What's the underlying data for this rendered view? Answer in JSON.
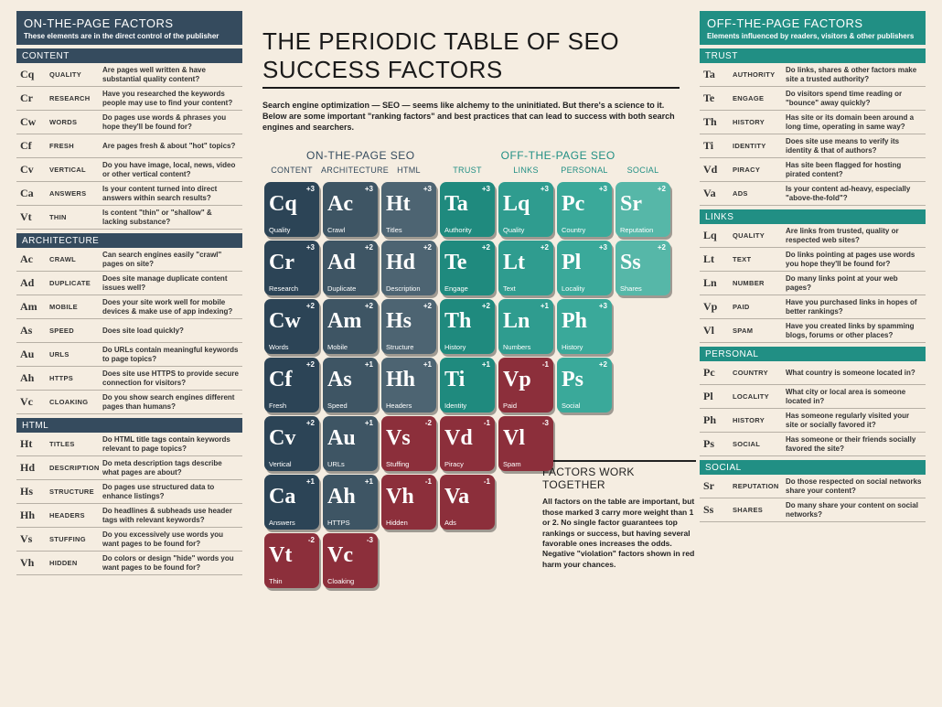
{
  "colors": {
    "bg": "#f5ede1",
    "left_theme": "#354b5e",
    "right_theme": "#218f84",
    "rule": "#b7b0a5",
    "text": "#222222"
  },
  "title": "THE PERIODIC TABLE OF SEO SUCCESS FACTORS",
  "intro": "Search engine optimization — SEO — seems like alchemy to the uninitiated. But there's a science to it. Below are some important \"ranking factors\" and best practices that can lead to success with both search engines and searchers.",
  "group_labels": {
    "on": "ON-THE-PAGE SEO",
    "off": "OFF-THE-PAGE SEO"
  },
  "columns": [
    "CONTENT",
    "ARCHITECTURE",
    "HTML",
    "TRUST",
    "LINKS",
    "PERSONAL",
    "SOCIAL"
  ],
  "column_colors": [
    "#2c4456",
    "#3e5564",
    "#4d6472",
    "#1f8a7e",
    "#2f9c8f",
    "#3aa99a",
    "#56b7a8"
  ],
  "violation_color": "#8c2f3b",
  "tiles": [
    {
      "col": 1,
      "row": 1,
      "sym": "Cq",
      "lbl": "Quality",
      "score": "+3"
    },
    {
      "col": 2,
      "row": 1,
      "sym": "Ac",
      "lbl": "Crawl",
      "score": "+3"
    },
    {
      "col": 3,
      "row": 1,
      "sym": "Ht",
      "lbl": "Titles",
      "score": "+3"
    },
    {
      "col": 4,
      "row": 1,
      "sym": "Ta",
      "lbl": "Authority",
      "score": "+3"
    },
    {
      "col": 5,
      "row": 1,
      "sym": "Lq",
      "lbl": "Quality",
      "score": "+3"
    },
    {
      "col": 6,
      "row": 1,
      "sym": "Pc",
      "lbl": "Country",
      "score": "+3"
    },
    {
      "col": 7,
      "row": 1,
      "sym": "Sr",
      "lbl": "Reputation",
      "score": "+2"
    },
    {
      "col": 1,
      "row": 2,
      "sym": "Cr",
      "lbl": "Research",
      "score": "+3"
    },
    {
      "col": 2,
      "row": 2,
      "sym": "Ad",
      "lbl": "Duplicate",
      "score": "+2"
    },
    {
      "col": 3,
      "row": 2,
      "sym": "Hd",
      "lbl": "Description",
      "score": "+2"
    },
    {
      "col": 4,
      "row": 2,
      "sym": "Te",
      "lbl": "Engage",
      "score": "+2"
    },
    {
      "col": 5,
      "row": 2,
      "sym": "Lt",
      "lbl": "Text",
      "score": "+2"
    },
    {
      "col": 6,
      "row": 2,
      "sym": "Pl",
      "lbl": "Locality",
      "score": "+3"
    },
    {
      "col": 7,
      "row": 2,
      "sym": "Ss",
      "lbl": "Shares",
      "score": "+2"
    },
    {
      "col": 1,
      "row": 3,
      "sym": "Cw",
      "lbl": "Words",
      "score": "+2"
    },
    {
      "col": 2,
      "row": 3,
      "sym": "Am",
      "lbl": "Mobile",
      "score": "+2"
    },
    {
      "col": 3,
      "row": 3,
      "sym": "Hs",
      "lbl": "Structure",
      "score": "+2"
    },
    {
      "col": 4,
      "row": 3,
      "sym": "Th",
      "lbl": "History",
      "score": "+2"
    },
    {
      "col": 5,
      "row": 3,
      "sym": "Ln",
      "lbl": "Numbers",
      "score": "+1"
    },
    {
      "col": 6,
      "row": 3,
      "sym": "Ph",
      "lbl": "History",
      "score": "+3"
    },
    {
      "col": 1,
      "row": 4,
      "sym": "Cf",
      "lbl": "Fresh",
      "score": "+2"
    },
    {
      "col": 2,
      "row": 4,
      "sym": "As",
      "lbl": "Speed",
      "score": "+1"
    },
    {
      "col": 3,
      "row": 4,
      "sym": "Hh",
      "lbl": "Headers",
      "score": "+1"
    },
    {
      "col": 4,
      "row": 4,
      "sym": "Ti",
      "lbl": "Identity",
      "score": "+1"
    },
    {
      "col": 5,
      "row": 4,
      "sym": "Vp",
      "lbl": "Paid",
      "score": "-1",
      "violation": true
    },
    {
      "col": 6,
      "row": 4,
      "sym": "Ps",
      "lbl": "Social",
      "score": "+2"
    },
    {
      "col": 1,
      "row": 5,
      "sym": "Cv",
      "lbl": "Vertical",
      "score": "+2"
    },
    {
      "col": 2,
      "row": 5,
      "sym": "Au",
      "lbl": "URLs",
      "score": "+1"
    },
    {
      "col": 3,
      "row": 5,
      "sym": "Vs",
      "lbl": "Stuffing",
      "score": "-2",
      "violation": true
    },
    {
      "col": 4,
      "row": 5,
      "sym": "Vd",
      "lbl": "Piracy",
      "score": "-1",
      "violation": true
    },
    {
      "col": 5,
      "row": 5,
      "sym": "Vl",
      "lbl": "Spam",
      "score": "-3",
      "violation": true
    },
    {
      "col": 1,
      "row": 6,
      "sym": "Ca",
      "lbl": "Answers",
      "score": "+1"
    },
    {
      "col": 2,
      "row": 6,
      "sym": "Ah",
      "lbl": "HTTPS",
      "score": "+1"
    },
    {
      "col": 3,
      "row": 6,
      "sym": "Vh",
      "lbl": "Hidden",
      "score": "-1",
      "violation": true
    },
    {
      "col": 4,
      "row": 6,
      "sym": "Va",
      "lbl": "Ads",
      "score": "-1",
      "violation": true
    },
    {
      "col": 1,
      "row": 7,
      "sym": "Vt",
      "lbl": "Thin",
      "score": "-2",
      "violation": true
    },
    {
      "col": 2,
      "row": 7,
      "sym": "Vc",
      "lbl": "Cloaking",
      "score": "-3",
      "violation": true
    }
  ],
  "note": {
    "heading": "FACTORS WORK TOGETHER",
    "body": "All factors on the table are important, but those marked 3 carry more weight than 1 or 2. No single factor guarantees top rankings or success, but having several favorable ones increases the odds. Negative \"violation\" factors shown in red harm your chances."
  },
  "left": {
    "title": "ON-THE-PAGE FACTORS",
    "sub": "These elements are in the direct control of the publisher",
    "sections": [
      {
        "name": "CONTENT",
        "rows": [
          {
            "sym": "Cq",
            "name": "QUALITY",
            "desc": "Are pages well written & have substantial quality content?"
          },
          {
            "sym": "Cr",
            "name": "RESEARCH",
            "desc": "Have you researched the keywords people may use to find your content?"
          },
          {
            "sym": "Cw",
            "name": "WORDS",
            "desc": "Do pages use words & phrases you hope they'll be found for?"
          },
          {
            "sym": "Cf",
            "name": "FRESH",
            "desc": "Are pages fresh & about \"hot\" topics?"
          },
          {
            "sym": "Cv",
            "name": "VERTICAL",
            "desc": "Do you have image, local, news, video or other vertical content?"
          },
          {
            "sym": "Ca",
            "name": "ANSWERS",
            "desc": "Is your content turned into direct answers within search results?"
          },
          {
            "sym": "Vt",
            "name": "THIN",
            "desc": "Is content \"thin\" or \"shallow\" & lacking substance?"
          }
        ]
      },
      {
        "name": "ARCHITECTURE",
        "rows": [
          {
            "sym": "Ac",
            "name": "CRAWL",
            "desc": "Can search engines easily \"crawl\" pages on site?"
          },
          {
            "sym": "Ad",
            "name": "DUPLICATE",
            "desc": "Does site manage duplicate content issues well?"
          },
          {
            "sym": "Am",
            "name": "MOBILE",
            "desc": "Does your site work well for mobile devices & make use of app indexing?"
          },
          {
            "sym": "As",
            "name": "SPEED",
            "desc": "Does site load quickly?"
          },
          {
            "sym": "Au",
            "name": "URLS",
            "desc": "Do URLs contain meaningful keywords to page topics?"
          },
          {
            "sym": "Ah",
            "name": "HTTPS",
            "desc": "Does site use HTTPS to provide secure connection for visitors?"
          },
          {
            "sym": "Vc",
            "name": "CLOAKING",
            "desc": "Do you show search engines different pages than humans?"
          }
        ]
      },
      {
        "name": "HTML",
        "rows": [
          {
            "sym": "Ht",
            "name": "TITLES",
            "desc": "Do HTML title tags contain keywords relevant to page topics?"
          },
          {
            "sym": "Hd",
            "name": "DESCRIPTION",
            "desc": "Do meta description tags describe what pages are about?"
          },
          {
            "sym": "Hs",
            "name": "STRUCTURE",
            "desc": "Do pages use structured data to enhance listings?"
          },
          {
            "sym": "Hh",
            "name": "HEADERS",
            "desc": "Do headlines & subheads use header tags with relevant keywords?"
          },
          {
            "sym": "Vs",
            "name": "STUFFING",
            "desc": "Do you excessively use words you want pages to be found for?"
          },
          {
            "sym": "Vh",
            "name": "HIDDEN",
            "desc": "Do colors or design \"hide\" words you want pages to be found for?"
          }
        ]
      }
    ]
  },
  "right": {
    "title": "OFF-THE-PAGE FACTORS",
    "sub": "Elements influenced by readers, visitors & other publishers",
    "sections": [
      {
        "name": "TRUST",
        "rows": [
          {
            "sym": "Ta",
            "name": "AUTHORITY",
            "desc": "Do links, shares & other factors make site a trusted authority?"
          },
          {
            "sym": "Te",
            "name": "ENGAGE",
            "desc": "Do visitors spend time reading or \"bounce\" away quickly?"
          },
          {
            "sym": "Th",
            "name": "HISTORY",
            "desc": "Has site or its domain been around a long time, operating in same way?"
          },
          {
            "sym": "Ti",
            "name": "IDENTITY",
            "desc": "Does site use means to verify its identity & that of authors?"
          },
          {
            "sym": "Vd",
            "name": "PIRACY",
            "desc": "Has site been flagged for hosting pirated content?"
          },
          {
            "sym": "Va",
            "name": "ADS",
            "desc": "Is your content ad-heavy, especially \"above-the-fold\"?"
          }
        ]
      },
      {
        "name": "LINKS",
        "rows": [
          {
            "sym": "Lq",
            "name": "QUALITY",
            "desc": "Are links from trusted, quality or respected web sites?"
          },
          {
            "sym": "Lt",
            "name": "TEXT",
            "desc": "Do links pointing at pages use words you hope they'll be found for?"
          },
          {
            "sym": "Ln",
            "name": "NUMBER",
            "desc": "Do many links point at your web pages?"
          },
          {
            "sym": "Vp",
            "name": "PAID",
            "desc": "Have you purchased links in hopes of better rankings?"
          },
          {
            "sym": "Vl",
            "name": "SPAM",
            "desc": "Have you created links by spamming blogs, forums or other places?"
          }
        ]
      },
      {
        "name": "PERSONAL",
        "rows": [
          {
            "sym": "Pc",
            "name": "COUNTRY",
            "desc": "What country is someone located in?"
          },
          {
            "sym": "Pl",
            "name": "LOCALITY",
            "desc": "What city or local area is someone located in?"
          },
          {
            "sym": "Ph",
            "name": "HISTORY",
            "desc": "Has someone regularly visited your site or socially favored it?"
          },
          {
            "sym": "Ps",
            "name": "SOCIAL",
            "desc": "Has someone or their friends socially favored the site?"
          }
        ]
      },
      {
        "name": "SOCIAL",
        "rows": [
          {
            "sym": "Sr",
            "name": "REPUTATION",
            "desc": "Do those respected on social networks share your content?"
          },
          {
            "sym": "Ss",
            "name": "SHARES",
            "desc": "Do many share your content on social networks?"
          }
        ]
      }
    ]
  }
}
